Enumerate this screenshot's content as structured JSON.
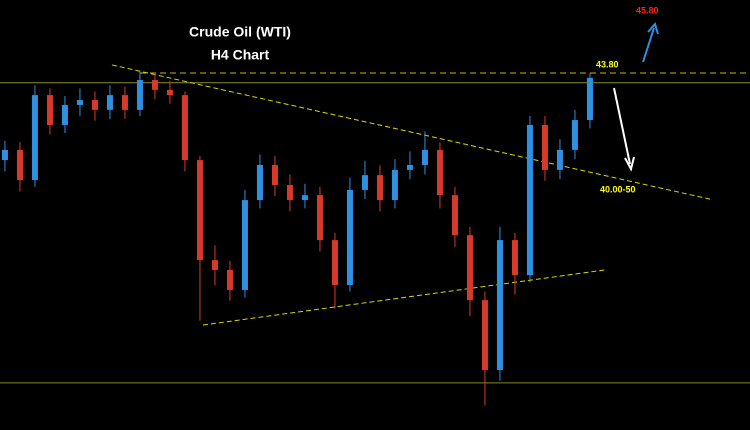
{
  "chart_data": {
    "type": "candlestick",
    "title": "Crude Oil (WTI)",
    "subtitle": "H4 Chart",
    "xlim": [
      -0.33,
      49.67
    ],
    "ylim": [
      32.2,
      46.17
    ],
    "up_color": "#2f8fe0",
    "down_color": "#d63a2a",
    "open": [
      40.97,
      41.3,
      40.32,
      43.08,
      42.11,
      42.76,
      42.92,
      42.6,
      43.08,
      42.6,
      43.57,
      43.25,
      43.08,
      40.97,
      37.72,
      37.4,
      36.75,
      39.67,
      40.81,
      40.16,
      39.67,
      39.83,
      38.37,
      36.91,
      40.0,
      40.48,
      39.67,
      40.65,
      40.81,
      41.3,
      39.83,
      38.53,
      36.42,
      34.15,
      38.37,
      37.23,
      42.11,
      40.65,
      41.3,
      42.27
    ],
    "high": [
      41.6,
      41.55,
      43.4,
      43.3,
      43.05,
      43.3,
      43.2,
      43.4,
      43.35,
      43.85,
      43.8,
      43.55,
      43.2,
      41.1,
      38.2,
      37.7,
      40.0,
      41.15,
      41.1,
      40.5,
      40.2,
      40.1,
      38.6,
      40.4,
      40.95,
      40.8,
      41.0,
      41.25,
      41.9,
      41.55,
      40.1,
      38.8,
      36.7,
      38.8,
      38.6,
      42.4,
      42.4,
      41.65,
      42.6,
      43.8
    ],
    "low": [
      40.6,
      39.95,
      40.1,
      41.8,
      41.85,
      42.4,
      42.25,
      42.3,
      42.3,
      42.4,
      42.95,
      42.8,
      40.6,
      35.75,
      36.9,
      36.4,
      36.5,
      39.4,
      39.8,
      39.3,
      39.4,
      38.0,
      36.15,
      36.7,
      39.7,
      39.3,
      39.4,
      40.35,
      40.5,
      39.4,
      38.15,
      35.9,
      33.0,
      33.8,
      36.6,
      37.0,
      40.3,
      40.35,
      41.0,
      42.0
    ],
    "close": [
      41.3,
      40.32,
      43.08,
      42.11,
      42.76,
      42.92,
      42.6,
      43.08,
      42.6,
      43.57,
      43.25,
      43.08,
      40.97,
      37.72,
      37.4,
      36.75,
      39.67,
      40.81,
      40.16,
      39.67,
      39.83,
      38.37,
      36.91,
      40.0,
      40.48,
      39.67,
      40.65,
      40.81,
      41.3,
      39.83,
      38.53,
      36.42,
      34.15,
      38.37,
      37.23,
      42.11,
      40.65,
      41.3,
      42.27,
      43.64
    ],
    "levels": [
      {
        "value": 43.48,
        "color": "#8a8a20",
        "dashed": false
      },
      {
        "value": 33.73,
        "color": "#8a8a20",
        "dashed": false
      },
      {
        "value": 43.8,
        "label": "43.80",
        "color": "#c8b400",
        "dashed": true
      }
    ],
    "trendlines": [
      {
        "x": [
          7.13,
          47
        ],
        "y": [
          44.06,
          39.7
        ],
        "color": "#d8d800"
      },
      {
        "x": [
          13.2,
          40
        ],
        "y": [
          35.61,
          37.4
        ],
        "color": "#d8d800"
      }
    ],
    "annotations": [
      {
        "text": "45.80",
        "color": "#ff2020"
      },
      {
        "text": "40.00-50",
        "color": "#ffff00"
      }
    ]
  }
}
